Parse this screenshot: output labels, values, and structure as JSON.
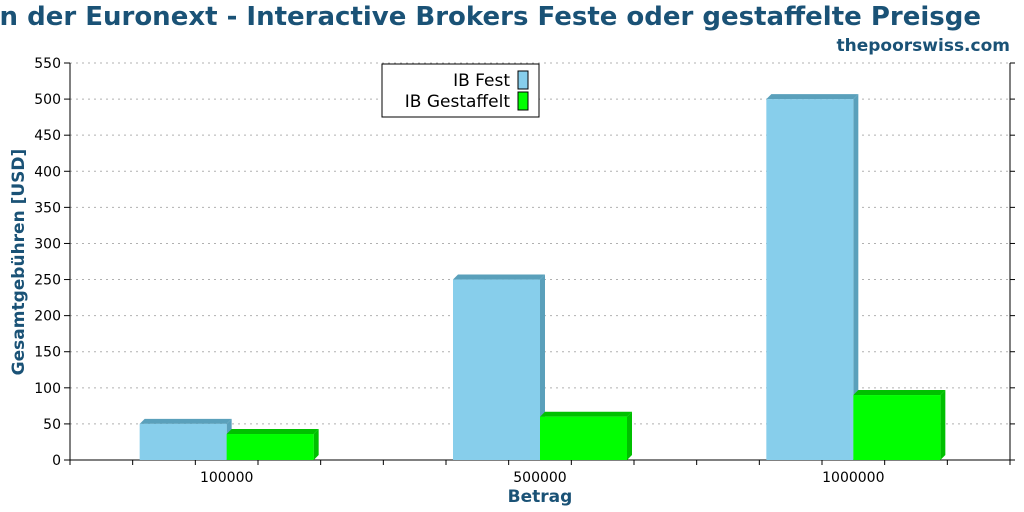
{
  "chart_data": {
    "type": "bar",
    "title": "an der Euronext - Interactive Brokers Feste oder gestaffelte Preisge",
    "subtitle": "thepoorswiss.com",
    "xlabel": "Betrag",
    "ylabel": "Gesamtgebühren [USD]",
    "categories": [
      "100000",
      "500000",
      "1000000"
    ],
    "series": [
      {
        "name": "IB Fest",
        "values": [
          50,
          250,
          500
        ]
      },
      {
        "name": "IB Gestaffelt",
        "values": [
          36,
          60,
          90
        ]
      }
    ],
    "ylim": [
      0,
      550
    ],
    "yticks": [
      "0",
      "50",
      "100",
      "150",
      "200",
      "250",
      "300",
      "350",
      "400",
      "450",
      "500",
      "550"
    ],
    "grid": true,
    "legend_position": "top-center",
    "colors": {
      "title": "#1a5276",
      "series": [
        "#87ceeb",
        "#00ff00"
      ],
      "series_side": [
        "#5aa0bb",
        "#00c000"
      ]
    }
  }
}
